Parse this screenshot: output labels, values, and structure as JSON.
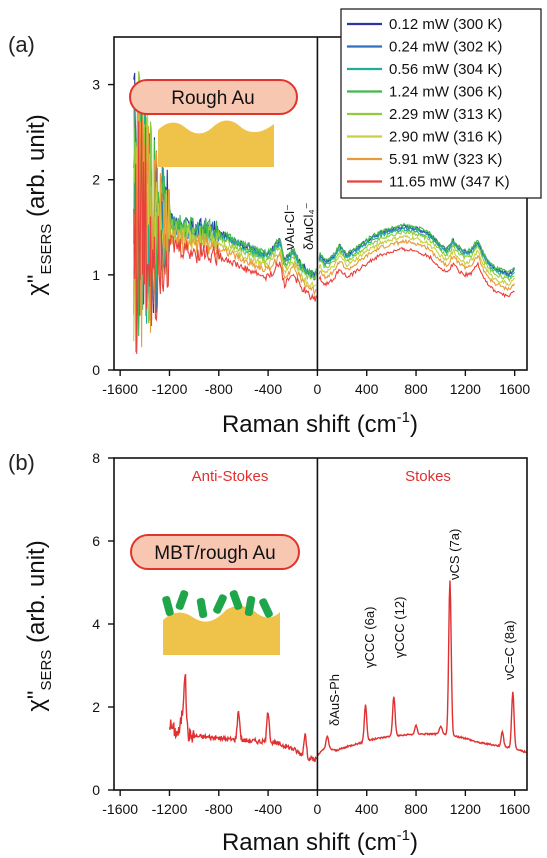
{
  "chart_data": [
    {
      "panel_label": "(a)",
      "type": "line",
      "xlabel_main": "Raman shift (cm",
      "xlabel_sup": "-1",
      "xlabel_end": ")",
      "ylabel_main": "χ\"",
      "ylabel_sub": "ESERS",
      "ylabel_end": " (arb. unit)",
      "xlim": [
        -1650,
        1700
      ],
      "ylim": [
        0,
        3.5
      ],
      "xticks": [
        -1600,
        -1200,
        -800,
        -400,
        0,
        400,
        800,
        1200,
        1600
      ],
      "xtick_labels": [
        "-1600",
        "-1200",
        "-800",
        "-400",
        "0",
        "400",
        "800",
        "1200",
        "1600"
      ],
      "yticks": [
        0,
        1,
        2,
        3
      ],
      "ytick_labels": [
        "0",
        "1",
        "2",
        "3"
      ],
      "inset_label": "Rough Au",
      "peak_labels": [
        "νAu-Cl⁻",
        "δAuCl₄⁻"
      ],
      "legend_position": "top-right",
      "series": [
        {
          "name": "0.12 mW (300 K)",
          "color": "#2a35a0",
          "offset": 0.06
        },
        {
          "name": "0.24 mW (302 K)",
          "color": "#2f6fc0",
          "offset": 0.05
        },
        {
          "name": "0.56 mW (304 K)",
          "color": "#1fae9a",
          "offset": 0.03
        },
        {
          "name": "1.24 mW (306 K)",
          "color": "#3fb84a",
          "offset": 0.07
        },
        {
          "name": "2.29 mW (313 K)",
          "color": "#8fcc3a",
          "offset": 0.0
        },
        {
          "name": "2.90 mW (316 K)",
          "color": "#c8d040",
          "offset": -0.05
        },
        {
          "name": "5.91 mW (323 K)",
          "color": "#ea9a38",
          "offset": -0.1
        },
        {
          "name": "11.65 mW (347 K)",
          "color": "#e8403c",
          "offset": -0.18
        }
      ],
      "base_curve": {
        "x": [
          -1500,
          -1400,
          -1300,
          -1200,
          -1100,
          -1000,
          -900,
          -800,
          -700,
          -600,
          -500,
          -420,
          -380,
          -340,
          -300,
          -270,
          -240,
          -200,
          -150,
          -100,
          -50,
          -20,
          20,
          60,
          100,
          140,
          180,
          240,
          300,
          400,
          500,
          600,
          700,
          800,
          900,
          1000,
          1050,
          1100,
          1150,
          1200,
          1250,
          1300,
          1350,
          1400,
          1450,
          1500,
          1550,
          1600
        ],
        "y": [
          1.75,
          1.65,
          1.55,
          1.5,
          1.45,
          1.42,
          1.42,
          1.38,
          1.32,
          1.25,
          1.2,
          1.15,
          1.18,
          1.25,
          1.3,
          1.08,
          1.12,
          1.2,
          1.08,
          1.0,
          0.95,
          0.92,
          1.15,
          1.08,
          1.1,
          1.15,
          1.25,
          1.15,
          1.2,
          1.3,
          1.38,
          1.42,
          1.45,
          1.43,
          1.38,
          1.25,
          1.2,
          1.3,
          1.22,
          1.18,
          1.2,
          1.3,
          1.15,
          1.05,
          1.0,
          0.98,
          0.95,
          1.0
        ]
      }
    },
    {
      "panel_label": "(b)",
      "type": "line",
      "xlabel_main": "Raman shift (cm",
      "xlabel_sup": "-1",
      "xlabel_end": ")",
      "ylabel_main": "χ\"",
      "ylabel_sub": "SERS",
      "ylabel_end": " (arb. unit)",
      "xlim": [
        -1650,
        1700
      ],
      "ylim": [
        0,
        8
      ],
      "xticks": [
        -1600,
        -1200,
        -800,
        -400,
        0,
        400,
        800,
        1200,
        1600
      ],
      "xtick_labels": [
        "-1600",
        "-1200",
        "-800",
        "-400",
        "0",
        "400",
        "800",
        "1200",
        "1600"
      ],
      "yticks": [
        0,
        2,
        4,
        6,
        8
      ],
      "ytick_labels": [
        "0",
        "2",
        "4",
        "6",
        "8"
      ],
      "region_labels": [
        "Anti-Stokes",
        "Stokes"
      ],
      "inset_label": "MBT/rough Au",
      "peak_labels": [
        "δAuS-Ph",
        "γCCC (6a)",
        "γCCC (12)",
        "νCS (7a)",
        "νC=C (8a)"
      ],
      "series": [
        {
          "name": "",
          "color": "#e03030"
        }
      ],
      "base_curve": {
        "x": [
          -1200,
          -1150,
          -1100,
          -1000,
          -900,
          -800,
          -700,
          -600,
          -500,
          -400,
          -300,
          -200,
          -150,
          -100,
          -50,
          -20,
          20,
          60,
          80,
          100,
          150,
          200,
          300,
          380,
          420,
          500,
          600,
          700,
          800,
          900,
          1000,
          1100,
          1200,
          1300,
          1400,
          1500,
          1600,
          1700
        ],
        "y": [
          1.6,
          1.4,
          1.35,
          1.3,
          1.28,
          1.25,
          1.22,
          1.2,
          1.18,
          1.15,
          1.1,
          1.0,
          0.9,
          0.8,
          0.75,
          0.72,
          0.9,
          1.0,
          1.05,
          1.0,
          0.95,
          1.0,
          1.1,
          1.15,
          1.2,
          1.25,
          1.3,
          1.32,
          1.35,
          1.35,
          1.35,
          1.3,
          1.25,
          1.15,
          1.1,
          1.05,
          1.0,
          0.9
        ]
      },
      "peaks": [
        {
          "x": -1075,
          "y": 2.8
        },
        {
          "x": -1100,
          "y": 1.75
        },
        {
          "x": -640,
          "y": 1.9
        },
        {
          "x": -400,
          "y": 1.9
        },
        {
          "x": -100,
          "y": 1.35
        },
        {
          "x": 80,
          "y": 1.3
        },
        {
          "x": 390,
          "y": 2.05
        },
        {
          "x": 620,
          "y": 2.25
        },
        {
          "x": 800,
          "y": 1.55
        },
        {
          "x": 1000,
          "y": 1.55
        },
        {
          "x": 1075,
          "y": 5.05
        },
        {
          "x": 1500,
          "y": 1.4
        },
        {
          "x": 1585,
          "y": 2.35
        }
      ]
    }
  ]
}
